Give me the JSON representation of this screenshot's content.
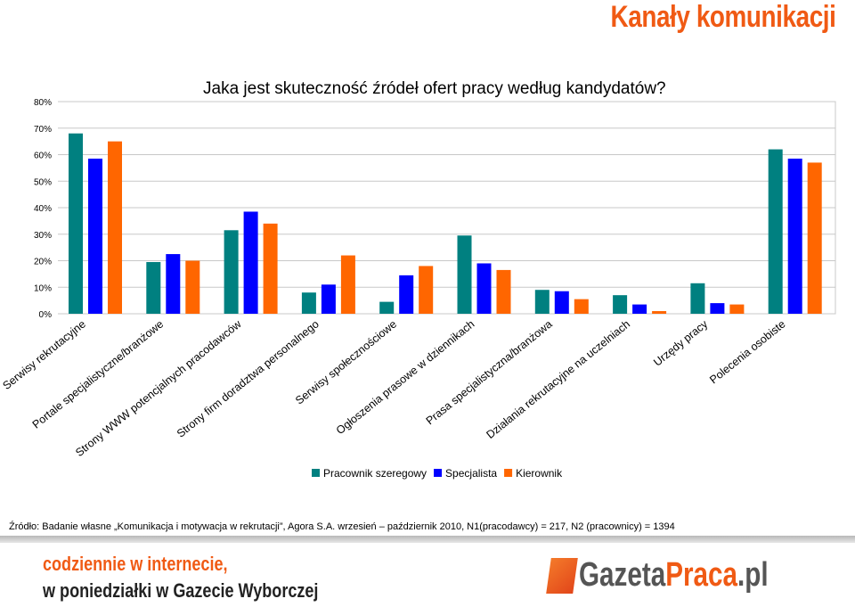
{
  "header": {
    "title": "Kanały komunikacji"
  },
  "chart_data": {
    "type": "bar",
    "title": "Jaka jest skuteczność źródeł ofert pracy według kandydatów?",
    "categories": [
      "Serwisy rekrutacyjne",
      "Portale specjalistyczne/branżowe",
      "Strony WWW potencjalnych pracodawców",
      "Strony firm doradztwa personalnego",
      "Serwisy społecznościowe",
      "Ogłoszenia prasowe w dziennikach",
      "Prasa specjalistyczna/branżowa",
      "Działania rekrutacyjne na uczelniach",
      "Urzędy pracy",
      "Polecenia osobiste"
    ],
    "series": [
      {
        "name": "Pracownik szeregowy",
        "color": "#008080",
        "values": [
          68,
          19.5,
          31.5,
          8,
          4.5,
          29.5,
          9,
          7,
          11.5,
          62
        ]
      },
      {
        "name": "Specjalista",
        "color": "#0000ff",
        "values": [
          58.5,
          22.5,
          38.5,
          11,
          14.5,
          19,
          8.5,
          3.5,
          4,
          58.5
        ]
      },
      {
        "name": "Kierownik",
        "color": "#ff6600",
        "values": [
          65,
          20,
          34,
          22,
          18,
          16.5,
          5.5,
          1,
          3.5,
          57
        ]
      }
    ],
    "yticks": [
      "0%",
      "10%",
      "20%",
      "30%",
      "40%",
      "50%",
      "60%",
      "70%",
      "80%"
    ],
    "ylim": [
      0,
      80
    ],
    "grid": true,
    "legend": "bottom-center"
  },
  "source": "Źródło: Badanie własne „Komunikacja i motywacja w rekrutacji”, Agora S.A. wrzesień – październik 2010, N1(pracodawcy) = 217, N2 (pracownicy) = 1394",
  "promo": {
    "line1": "codziennie w internecie,",
    "line2": "w poniedziałki w Gazecie Wyborczej"
  },
  "logo": {
    "part1": "Gazeta",
    "part2": "Praca",
    "part3": ".pl"
  }
}
